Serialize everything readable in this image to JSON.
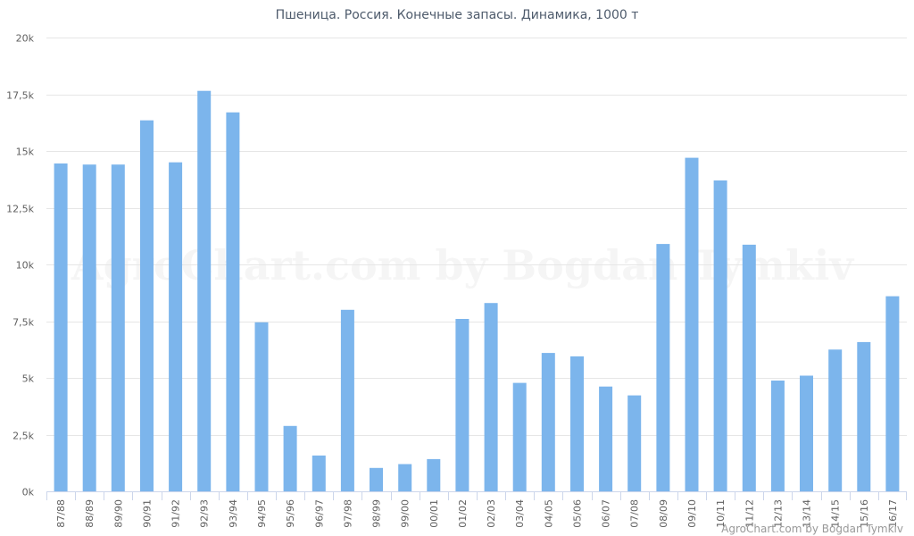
{
  "chart_data": {
    "type": "bar",
    "title": "Пшеница. Россия. Конечные запасы. Динамика, 1000 т",
    "xlabel": "",
    "ylabel": "",
    "ylim": [
      0,
      20000
    ],
    "y_ticks": [
      0,
      2500,
      5000,
      7500,
      10000,
      12500,
      15000,
      17500,
      20000
    ],
    "y_tick_labels": [
      "0k",
      "2,5k",
      "5k",
      "7,5k",
      "10k",
      "12,5k",
      "15k",
      "17,5k",
      "20k"
    ],
    "grid": true,
    "legend": "none",
    "bar_color": "#7cb5ec",
    "categories": [
      "87/88",
      "88/89",
      "89/90",
      "90/91",
      "91/92",
      "92/93",
      "93/94",
      "94/95",
      "95/96",
      "96/97",
      "97/98",
      "98/99",
      "99/00",
      "00/01",
      "01/02",
      "02/03",
      "03/04",
      "04/05",
      "05/06",
      "06/07",
      "07/08",
      "08/09",
      "09/10",
      "10/11",
      "11/12",
      "12/13",
      "13/14",
      "14/15",
      "15/16",
      "16/17"
    ],
    "values": [
      14450,
      14400,
      14400,
      16350,
      14500,
      17650,
      16700,
      7450,
      2880,
      1580,
      8000,
      1030,
      1200,
      1420,
      7600,
      8300,
      4780,
      6100,
      5950,
      4620,
      4230,
      10900,
      14700,
      13700,
      10870,
      4880,
      5100,
      6250,
      6580,
      8600
    ]
  },
  "credit": "AgroChart.com by Bogdan Tymkiv",
  "watermark": "AgroChart.com by Bogdan Tymkiv"
}
